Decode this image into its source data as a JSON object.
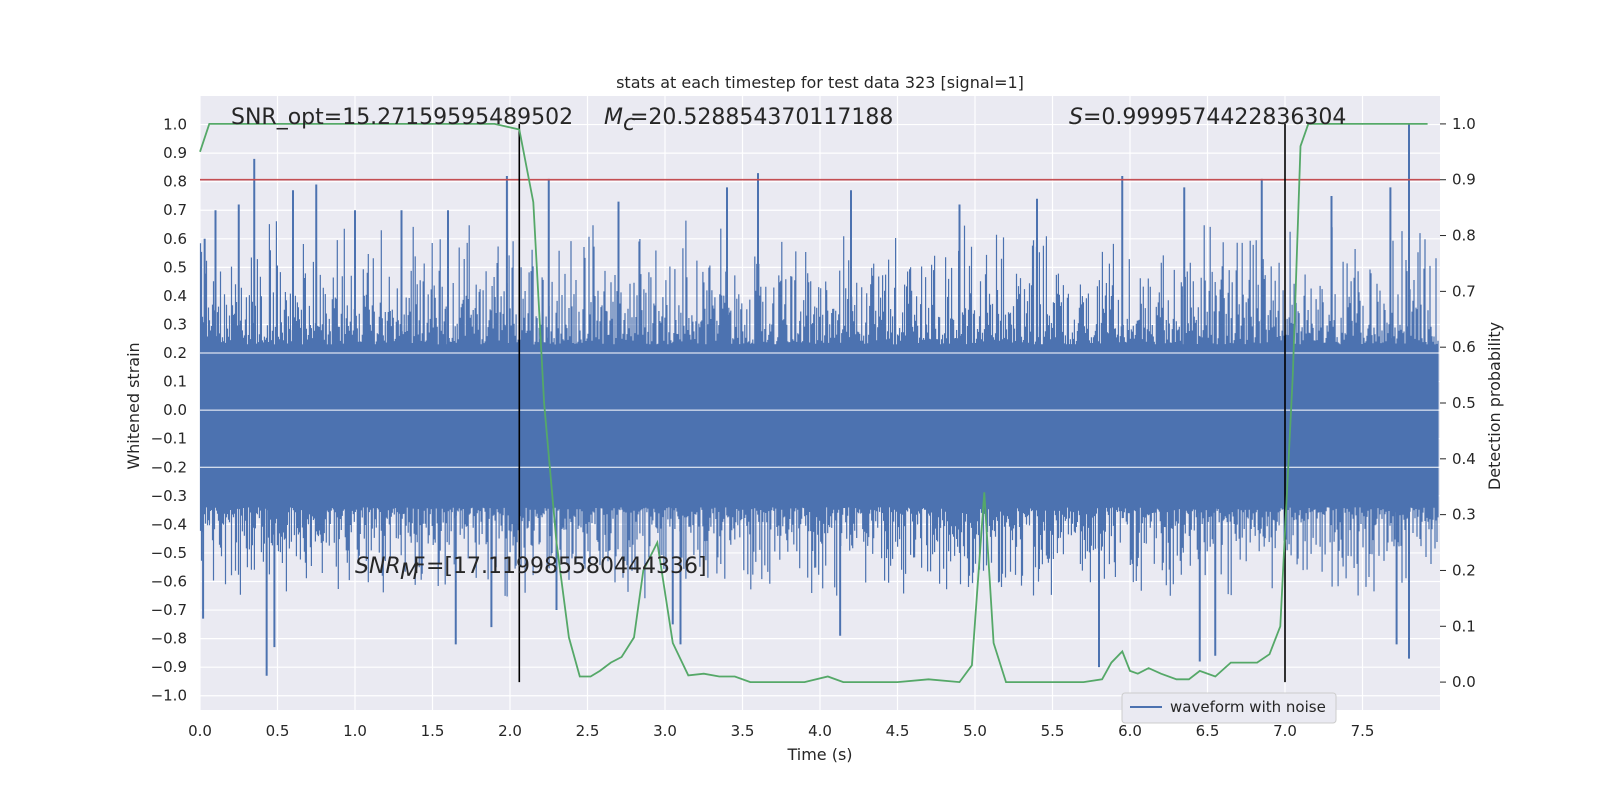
{
  "chart_data": {
    "type": "line",
    "title": "stats at each timestep for test data 323 [signal=1]",
    "xlabel": "Time (s)",
    "ylabel": "Whitened strain",
    "ylabel_right": "Detection probability",
    "xlim": [
      0,
      8
    ],
    "ylim": [
      -1.05,
      1.1
    ],
    "ylim_right": [
      -0.05,
      1.05
    ],
    "xticks": [
      "0.0",
      "0.5",
      "1.0",
      "1.5",
      "2.0",
      "2.5",
      "3.0",
      "3.5",
      "4.0",
      "4.5",
      "5.0",
      "5.5",
      "6.0",
      "6.5",
      "7.0",
      "7.5"
    ],
    "yticks": [
      "1.0",
      "0.9",
      "0.8",
      "0.7",
      "0.6",
      "0.5",
      "0.4",
      "0.3",
      "0.2",
      "0.1",
      "0.0",
      "-0.1",
      "-0.2",
      "-0.3",
      "-0.4",
      "-0.5",
      "-0.6",
      "-0.7",
      "-0.8",
      "-0.9",
      "-1.0"
    ],
    "yticks_right": [
      "1.0",
      "0.9",
      "0.8",
      "0.7",
      "0.6",
      "0.5",
      "0.4",
      "0.3",
      "0.2",
      "0.1",
      "0.0"
    ],
    "grid": true,
    "legend_position": "lower-right",
    "annotations": {
      "snr_opt": "SNR_opt=15.27159595489502",
      "mc": "=20.528854370117188",
      "s": "=0.9999574422836304",
      "snr_mf": "=[17.119985580444336]"
    },
    "threshold_right": 0.9,
    "vertical_markers_x": [
      2.06,
      7.0
    ],
    "series": [
      {
        "name": "waveform with noise",
        "axis": "left",
        "color": "#4c72b0",
        "envelope_upper_peaks": [
          {
            "x": 0.03,
            "y": 0.6
          },
          {
            "x": 0.1,
            "y": 0.7
          },
          {
            "x": 0.25,
            "y": 0.72
          },
          {
            "x": 0.35,
            "y": 0.88
          },
          {
            "x": 0.6,
            "y": 0.77
          },
          {
            "x": 0.75,
            "y": 0.79
          },
          {
            "x": 1.0,
            "y": 0.7
          },
          {
            "x": 1.3,
            "y": 0.7
          },
          {
            "x": 1.6,
            "y": 0.7
          },
          {
            "x": 1.98,
            "y": 0.82
          },
          {
            "x": 2.25,
            "y": 0.81
          },
          {
            "x": 2.7,
            "y": 0.73
          },
          {
            "x": 3.4,
            "y": 0.78
          },
          {
            "x": 3.6,
            "y": 0.83
          },
          {
            "x": 4.2,
            "y": 0.77
          },
          {
            "x": 4.9,
            "y": 0.72
          },
          {
            "x": 5.4,
            "y": 0.74
          },
          {
            "x": 5.95,
            "y": 0.82
          },
          {
            "x": 6.35,
            "y": 0.78
          },
          {
            "x": 6.85,
            "y": 0.81
          },
          {
            "x": 7.3,
            "y": 0.75
          },
          {
            "x": 7.68,
            "y": 0.78
          },
          {
            "x": 7.8,
            "y": 1.0
          }
        ],
        "envelope_lower_peaks": [
          {
            "x": 0.02,
            "y": -0.73
          },
          {
            "x": 0.43,
            "y": -0.93
          },
          {
            "x": 0.48,
            "y": -0.83
          },
          {
            "x": 1.65,
            "y": -0.82
          },
          {
            "x": 1.88,
            "y": -0.76
          },
          {
            "x": 2.3,
            "y": -0.7
          },
          {
            "x": 3.05,
            "y": -0.75
          },
          {
            "x": 3.1,
            "y": -0.82
          },
          {
            "x": 4.13,
            "y": -0.79
          },
          {
            "x": 5.8,
            "y": -0.9
          },
          {
            "x": 6.45,
            "y": -0.88
          },
          {
            "x": 6.55,
            "y": -0.86
          },
          {
            "x": 7.72,
            "y": -0.82
          },
          {
            "x": 7.8,
            "y": -0.87
          }
        ]
      },
      {
        "name": "detection probability",
        "axis": "right",
        "color": "#55a868",
        "x": [
          0.0,
          0.06,
          0.15,
          0.5,
          1.0,
          1.5,
          1.9,
          2.06,
          2.15,
          2.22,
          2.3,
          2.38,
          2.45,
          2.52,
          2.58,
          2.65,
          2.72,
          2.8,
          2.86,
          2.95,
          3.05,
          3.15,
          3.25,
          3.35,
          3.45,
          3.55,
          3.7,
          3.9,
          4.05,
          4.15,
          4.3,
          4.5,
          4.7,
          4.9,
          4.98,
          5.06,
          5.12,
          5.2,
          5.3,
          5.5,
          5.7,
          5.82,
          5.88,
          5.95,
          6.0,
          6.05,
          6.12,
          6.2,
          6.3,
          6.38,
          6.45,
          6.55,
          6.65,
          6.72,
          6.82,
          6.9,
          6.97,
          7.05,
          7.1,
          7.15,
          7.22,
          7.4,
          7.6,
          7.92
        ],
        "y": [
          0.95,
          1.0,
          1.0,
          1.0,
          1.0,
          1.0,
          1.0,
          0.99,
          0.86,
          0.5,
          0.25,
          0.08,
          0.01,
          0.01,
          0.02,
          0.035,
          0.045,
          0.08,
          0.2,
          0.25,
          0.07,
          0.012,
          0.015,
          0.01,
          0.01,
          0.0,
          0.0,
          0.0,
          0.01,
          0.0,
          0.0,
          0.0,
          0.005,
          0.0,
          0.03,
          0.34,
          0.07,
          0.0,
          0.0,
          0.0,
          0.0,
          0.005,
          0.035,
          0.055,
          0.02,
          0.015,
          0.025,
          0.015,
          0.005,
          0.005,
          0.02,
          0.01,
          0.035,
          0.035,
          0.035,
          0.05,
          0.1,
          0.55,
          0.96,
          1.0,
          1.0,
          1.0,
          1.0,
          1.0
        ]
      }
    ]
  },
  "legend": {
    "waveform_label": "waveform with noise"
  }
}
